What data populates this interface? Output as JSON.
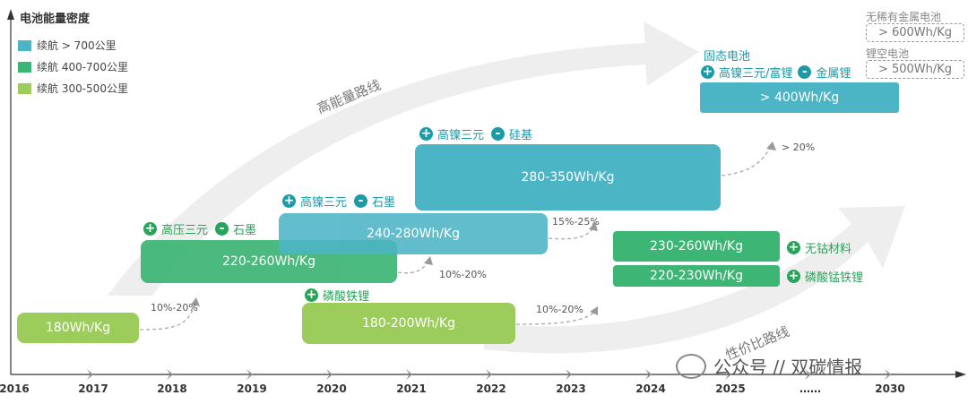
{
  "title": "电池能量密度",
  "legend": [
    {
      "label": "续航 > 700公里",
      "color": "#4cb5c5"
    },
    {
      "label": "续航 400-700公里",
      "color": "#3db574"
    },
    {
      "label": "续航 300-500公里",
      "color": "#9ccc5c"
    }
  ],
  "years": [
    "2016",
    "2017",
    "2018",
    "2019",
    "2020",
    "2021",
    "2022",
    "2023",
    "2024",
    "2025",
    "……",
    "2030"
  ],
  "routes": {
    "high": "高能量路线",
    "value": "性价比路线"
  },
  "boxes": [
    {
      "label": "180Wh/Kg"
    },
    {
      "label": "220-260Wh/Kg"
    },
    {
      "label": "240-280Wh/Kg"
    },
    {
      "label": "180-200Wh/Kg"
    },
    {
      "label": "280-350Wh/Kg"
    },
    {
      "label": "230-260Wh/Kg"
    },
    {
      "label": "220-230Wh/Kg"
    },
    {
      "label": "> 400Wh/Kg"
    }
  ],
  "tags": {
    "t1_plus": "高压三元",
    "t1_minus": "石墨",
    "t2_plus": "高镍三元",
    "t2_minus": "石墨",
    "t3_plus": "磷酸铁锂",
    "t4_plus": "高镍三元",
    "t4_minus": "硅基",
    "t5_plus": "无钴材料",
    "t6_plus": "磷酸锰铁锂",
    "t7_title": "固态电池",
    "t7_plus": "高镍三元/富锂",
    "t7_minus": "金属锂"
  },
  "percents": [
    "10%-20%",
    "10%-20%",
    "15%-25%",
    "10%-20%",
    "> 20%"
  ],
  "future": {
    "a_title": "无稀有金属电池",
    "a_value": "> 600Wh/Kg",
    "b_title": "锂空电池",
    "b_value": "> 500Wh/Kg"
  },
  "watermark": "公众号 // 双碳情报",
  "colors": {
    "teal": "#4cb5c5",
    "green": "#3db574",
    "lightgreen": "#9ccc5c",
    "tagGreen": "#2aa35a",
    "tagTeal": "#1b9aa8"
  }
}
